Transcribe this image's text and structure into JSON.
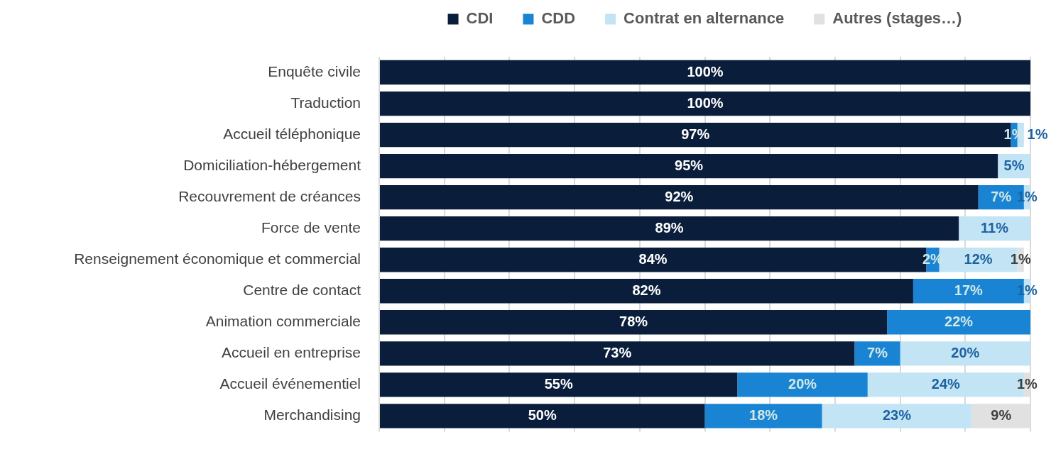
{
  "chart_data": {
    "type": "bar",
    "orientation": "horizontal",
    "stacked": true,
    "categories": [
      "Enquête civile",
      "Traduction",
      "Accueil téléphonique",
      "Domiciliation-hébergement",
      "Recouvrement de créances",
      "Force de vente",
      "Renseignement économique et commercial",
      "Centre de contact",
      "Animation commerciale",
      "Accueil en entreprise",
      "Accueil événementiel",
      "Merchandising"
    ],
    "series": [
      {
        "name": "CDI",
        "color": "#0a1e3c",
        "values": [
          100,
          100,
          97,
          95,
          92,
          89,
          84,
          82,
          78,
          73,
          55,
          50
        ],
        "value_labels": [
          "100%",
          "100%",
          "97%",
          "95%",
          "92%",
          "89%",
          "84%",
          "82%",
          "78%",
          "73%",
          "55%",
          "50%"
        ]
      },
      {
        "name": "CDD",
        "color": "#1a84d4",
        "values": [
          null,
          null,
          1,
          null,
          7,
          null,
          2,
          17,
          22,
          7,
          20,
          18
        ],
        "value_labels": [
          null,
          null,
          "1%",
          null,
          "7%",
          null,
          "2%",
          "17%",
          "22%",
          "7%",
          "20%",
          "18%"
        ]
      },
      {
        "name": "Contrat en alternance",
        "color": "#c2e4f5",
        "values": [
          null,
          null,
          1,
          5,
          1,
          11,
          12,
          1,
          null,
          20,
          24,
          23
        ],
        "value_labels": [
          null,
          null,
          "1%",
          "5%",
          "1%",
          "11%",
          "12%",
          "1%",
          null,
          "20%",
          "24%",
          "23%"
        ]
      },
      {
        "name": "Autres (stages…)",
        "color": "#e1e1e1",
        "values": [
          null,
          null,
          null,
          null,
          null,
          null,
          1,
          null,
          null,
          null,
          1,
          9
        ],
        "value_labels": [
          null,
          null,
          null,
          null,
          null,
          null,
          "1%",
          null,
          null,
          null,
          "1%",
          "9%"
        ]
      }
    ],
    "xlim": [
      0,
      100
    ],
    "xticks": [
      {
        "value": 0,
        "label": null
      },
      {
        "value": 10,
        "label": null
      },
      {
        "value": 20,
        "label": null
      },
      {
        "value": 30,
        "label": null
      },
      {
        "value": 40,
        "label": null
      },
      {
        "value": 50,
        "label": null
      },
      {
        "value": 60,
        "label": null
      },
      {
        "value": 70,
        "label": null
      },
      {
        "value": 80,
        "label": null
      },
      {
        "value": 90,
        "label": null
      },
      {
        "value": 100,
        "label": null
      }
    ],
    "grid": "x",
    "legend": "top",
    "tick_labels": "y"
  }
}
